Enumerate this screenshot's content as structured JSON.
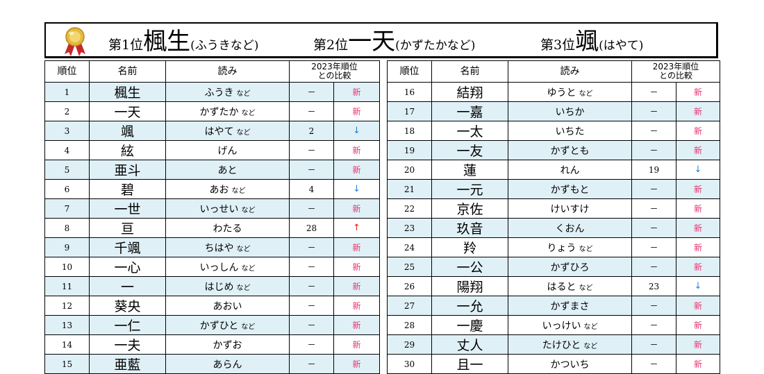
{
  "banner": {
    "medal_icon": "gold-medal-ribbon-icon",
    "first": {
      "pos": "第1位",
      "name": "楓生",
      "reading": "(ふうきなど)"
    },
    "second": {
      "pos": "第2位",
      "name": "一天",
      "reading": "(かずたかなど)"
    },
    "third": {
      "pos": "第3位",
      "name": "颯",
      "reading": "(はやて)"
    }
  },
  "headers": {
    "rank": "順位",
    "name": "名前",
    "reading": "読み",
    "compare_line1": "2023年順位",
    "compare_line2": "との比較"
  },
  "colors": {
    "row_alt": "#dff0f6",
    "new": "#e8326e",
    "down": "#2c7fd6",
    "up": "#e02020"
  },
  "rows": [
    {
      "rank": "1",
      "name": "楓生",
      "reading": "ふうき",
      "suffix": "など",
      "prev": "－",
      "change": "新",
      "type": "new"
    },
    {
      "rank": "2",
      "name": "一天",
      "reading": "かずたか",
      "suffix": "など",
      "prev": "－",
      "change": "新",
      "type": "new"
    },
    {
      "rank": "3",
      "name": "颯",
      "reading": "はやて",
      "suffix": "など",
      "prev": "2",
      "change": "↓",
      "type": "down"
    },
    {
      "rank": "4",
      "name": "絃",
      "reading": "げん",
      "suffix": "",
      "prev": "－",
      "change": "新",
      "type": "new"
    },
    {
      "rank": "5",
      "name": "亜斗",
      "reading": "あと",
      "suffix": "",
      "prev": "－",
      "change": "新",
      "type": "new"
    },
    {
      "rank": "6",
      "name": "碧",
      "reading": "あお",
      "suffix": "など",
      "prev": "4",
      "change": "↓",
      "type": "down"
    },
    {
      "rank": "7",
      "name": "一世",
      "reading": "いっせい",
      "suffix": "など",
      "prev": "－",
      "change": "新",
      "type": "new"
    },
    {
      "rank": "8",
      "name": "亘",
      "reading": "わたる",
      "suffix": "",
      "prev": "28",
      "change": "↑",
      "type": "up"
    },
    {
      "rank": "9",
      "name": "千颯",
      "reading": "ちはや",
      "suffix": "など",
      "prev": "－",
      "change": "新",
      "type": "new"
    },
    {
      "rank": "10",
      "name": "一心",
      "reading": "いっしん",
      "suffix": "など",
      "prev": "－",
      "change": "新",
      "type": "new"
    },
    {
      "rank": "11",
      "name": "一",
      "reading": "はじめ",
      "suffix": "など",
      "prev": "－",
      "change": "新",
      "type": "new"
    },
    {
      "rank": "12",
      "name": "葵央",
      "reading": "あおい",
      "suffix": "",
      "prev": "－",
      "change": "新",
      "type": "new"
    },
    {
      "rank": "13",
      "name": "一仁",
      "reading": "かずひと",
      "suffix": "など",
      "prev": "－",
      "change": "新",
      "type": "new"
    },
    {
      "rank": "14",
      "name": "一夫",
      "reading": "かずお",
      "suffix": "",
      "prev": "－",
      "change": "新",
      "type": "new"
    },
    {
      "rank": "15",
      "name": "亜藍",
      "reading": "あらん",
      "suffix": "",
      "prev": "－",
      "change": "新",
      "type": "new"
    },
    {
      "rank": "16",
      "name": "結翔",
      "reading": "ゆうと",
      "suffix": "など",
      "prev": "－",
      "change": "新",
      "type": "new"
    },
    {
      "rank": "17",
      "name": "一嘉",
      "reading": "いちか",
      "suffix": "",
      "prev": "－",
      "change": "新",
      "type": "new"
    },
    {
      "rank": "18",
      "name": "一太",
      "reading": "いちた",
      "suffix": "",
      "prev": "－",
      "change": "新",
      "type": "new"
    },
    {
      "rank": "19",
      "name": "一友",
      "reading": "かずとも",
      "suffix": "",
      "prev": "－",
      "change": "新",
      "type": "new"
    },
    {
      "rank": "20",
      "name": "蓮",
      "reading": "れん",
      "suffix": "",
      "prev": "19",
      "change": "↓",
      "type": "down"
    },
    {
      "rank": "21",
      "name": "一元",
      "reading": "かずもと",
      "suffix": "",
      "prev": "－",
      "change": "新",
      "type": "new"
    },
    {
      "rank": "22",
      "name": "京佐",
      "reading": "けいすけ",
      "suffix": "",
      "prev": "－",
      "change": "新",
      "type": "new"
    },
    {
      "rank": "23",
      "name": "玖音",
      "reading": "くおん",
      "suffix": "",
      "prev": "－",
      "change": "新",
      "type": "new"
    },
    {
      "rank": "24",
      "name": "羚",
      "reading": "りょう",
      "suffix": "など",
      "prev": "－",
      "change": "新",
      "type": "new"
    },
    {
      "rank": "25",
      "name": "一公",
      "reading": "かずひろ",
      "suffix": "",
      "prev": "－",
      "change": "新",
      "type": "new"
    },
    {
      "rank": "26",
      "name": "陽翔",
      "reading": "はると",
      "suffix": "など",
      "prev": "23",
      "change": "↓",
      "type": "down"
    },
    {
      "rank": "27",
      "name": "一允",
      "reading": "かずまさ",
      "suffix": "",
      "prev": "－",
      "change": "新",
      "type": "new"
    },
    {
      "rank": "28",
      "name": "一慶",
      "reading": "いっけい",
      "suffix": "など",
      "prev": "－",
      "change": "新",
      "type": "new"
    },
    {
      "rank": "29",
      "name": "丈人",
      "reading": "たけひと",
      "suffix": "など",
      "prev": "－",
      "change": "新",
      "type": "new"
    },
    {
      "rank": "30",
      "name": "且一",
      "reading": "かついち",
      "suffix": "",
      "prev": "－",
      "change": "新",
      "type": "new"
    }
  ]
}
